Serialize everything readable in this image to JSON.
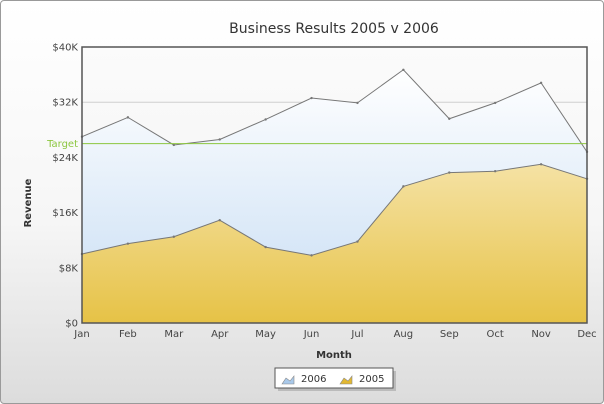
{
  "chart_data": {
    "type": "area",
    "title": "Business Results 2005 v 2006",
    "xlabel": "Month",
    "ylabel": "Revenue",
    "categories": [
      "Jan",
      "Feb",
      "Mar",
      "Apr",
      "May",
      "Jun",
      "Jul",
      "Aug",
      "Sep",
      "Oct",
      "Nov",
      "Dec"
    ],
    "ylim": [
      0,
      40000
    ],
    "yticks": [
      {
        "value": 0,
        "label": "$0"
      },
      {
        "value": 8000,
        "label": "$8K"
      },
      {
        "value": 16000,
        "label": "$16K"
      },
      {
        "value": 24000,
        "label": "$24K"
      },
      {
        "value": 32000,
        "label": "$32K"
      },
      {
        "value": 40000,
        "label": "$40K"
      }
    ],
    "series": [
      {
        "name": "2006",
        "color": "#c9dff5",
        "values": [
          27000,
          29800,
          25800,
          26600,
          29500,
          32600,
          31900,
          36700,
          29600,
          31900,
          34800,
          24800
        ]
      },
      {
        "name": "2005",
        "color": "#e8c44a",
        "values": [
          10000,
          11500,
          12500,
          14900,
          11000,
          9800,
          11800,
          19800,
          21800,
          22000,
          23000,
          20900
        ]
      }
    ],
    "target_line": {
      "label": "Target",
      "value": 26000,
      "color": "#8cc63f"
    },
    "legend_position": "bottom-center",
    "grid": true
  }
}
